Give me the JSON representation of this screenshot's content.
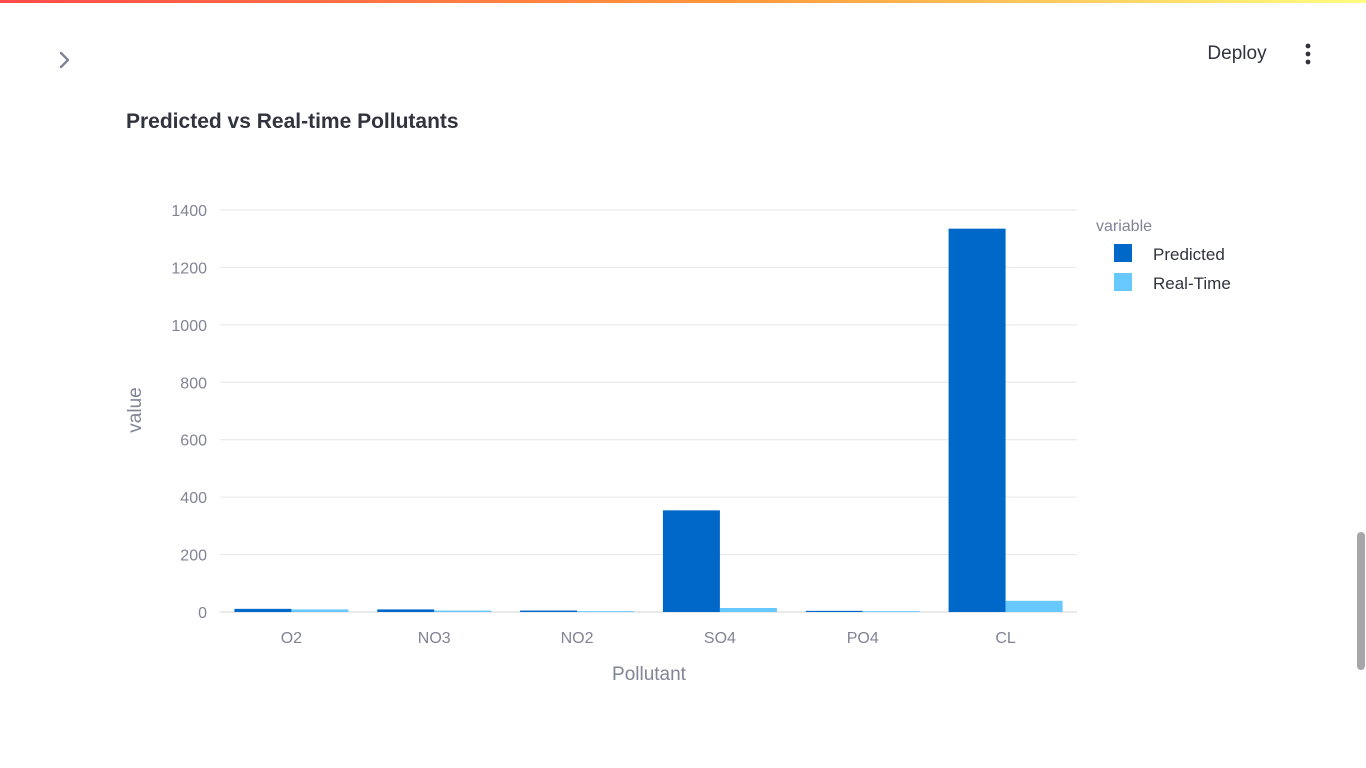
{
  "header": {
    "deploy_label": "Deploy",
    "sidebar_toggle_icon": "chevron-right-icon",
    "menu_icon": "vertical-dots-icon"
  },
  "page": {
    "title": "Predicted vs Real-time Pollutants"
  },
  "colors": {
    "predicted": "#0068c9",
    "real_time": "#66c8ff",
    "grid": "#e6e6e9",
    "axis_text": "#808495"
  },
  "chart_data": {
    "type": "bar",
    "mode": "grouped",
    "categories": [
      "O2",
      "NO3",
      "NO2",
      "SO4",
      "PO4",
      "CL"
    ],
    "series": [
      {
        "name": "Predicted",
        "values": [
          11,
          9,
          5,
          354,
          4,
          1335
        ]
      },
      {
        "name": "Real-Time",
        "values": [
          9,
          5,
          3,
          14,
          3,
          39
        ]
      }
    ],
    "xlabel": "Pollutant",
    "ylabel": "value",
    "ylim": [
      0,
      1400
    ],
    "yticks": [
      0,
      200,
      400,
      600,
      800,
      1000,
      1200,
      1400
    ],
    "legend": {
      "title": "variable",
      "placement": "right"
    },
    "grid": true
  }
}
